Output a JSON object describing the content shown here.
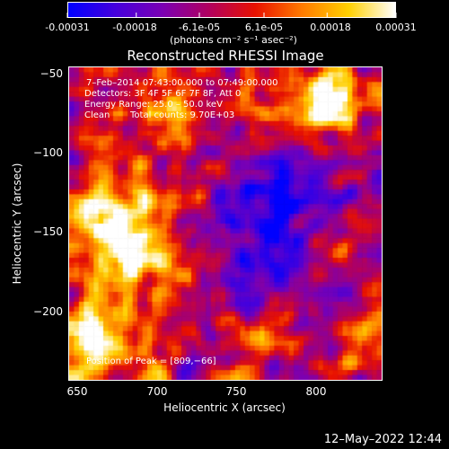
{
  "colorbar": {
    "tick_labels": [
      "-0.00031",
      "-0.00018",
      "-6.1e-05",
      "6.1e-05",
      "0.00018",
      "0.00031"
    ],
    "tick_values": [
      -0.00031,
      -0.00018,
      -6.1e-05,
      6.1e-05,
      0.00018,
      0.00031
    ],
    "units": "(photons cm⁻² s⁻¹ asec⁻²)",
    "colormap": [
      "#0000ff",
      "#4400dd",
      "#7a00b4",
      "#b10060",
      "#e81100",
      "#ff7a00",
      "#ffd000",
      "#ffffff"
    ]
  },
  "chart_data": {
    "type": "heatmap",
    "title": "Reconstructed RHESSI Image",
    "xlabel": "Heliocentric X (arcsec)",
    "ylabel": "Heliocentric Y (arcsec)",
    "xlim": [
      648,
      838
    ],
    "ylim": [
      -237,
      -46
    ],
    "x_ticks": [
      650,
      700,
      750,
      800
    ],
    "y_ticks": [
      -50,
      -100,
      -150,
      -200
    ],
    "x_tick_labels": [
      "650",
      "700",
      "750",
      "800"
    ],
    "y_tick_labels": [
      "−50",
      "−100",
      "−150",
      "−200"
    ],
    "value_range": [
      -0.00031,
      0.00031
    ],
    "peak": [
      809,
      -66
    ],
    "annotations": {
      "time_range": "7–Feb–2014 07:43:00.000 to 07:49:00.000",
      "detectors": "Detectors: 3F 4F 5F 6F 7F 8F, Att 0",
      "energy": "Energy Range: 25.0 – 50.0 keV",
      "clean": "Clean",
      "total_counts": "Total counts: 9.70E+03",
      "peak_position": "Position of Peak = [809,−66]"
    }
  },
  "footer": {
    "date": "12–May–2022 12:44"
  }
}
